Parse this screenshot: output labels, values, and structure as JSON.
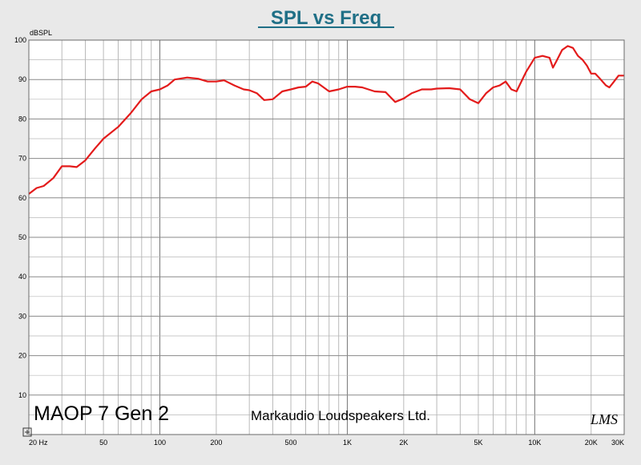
{
  "chart_data": {
    "type": "line",
    "title": "SPL vs Freq",
    "ylabel": "dBSPL",
    "xlabel": "",
    "x_scale": "log",
    "xlim": [
      20,
      30000
    ],
    "ylim": [
      0,
      100
    ],
    "grid": true,
    "y_ticks": [
      10,
      20,
      30,
      40,
      50,
      60,
      70,
      80,
      90,
      100
    ],
    "x_ticks": [
      {
        "value": 20,
        "label": "20 Hz"
      },
      {
        "value": 50,
        "label": "50"
      },
      {
        "value": 100,
        "label": "100"
      },
      {
        "value": 200,
        "label": "200"
      },
      {
        "value": 500,
        "label": "500"
      },
      {
        "value": 1000,
        "label": "1K"
      },
      {
        "value": 2000,
        "label": "2K"
      },
      {
        "value": 5000,
        "label": "5K"
      },
      {
        "value": 10000,
        "label": "10K"
      },
      {
        "value": 20000,
        "label": "20K"
      },
      {
        "value": 30000,
        "label": "30K"
      }
    ],
    "series": [
      {
        "color": "#e31b1b",
        "x": [
          20,
          22,
          24,
          27,
          30,
          33,
          36,
          40,
          45,
          50,
          60,
          70,
          80,
          90,
          100,
          110,
          120,
          140,
          160,
          180,
          200,
          220,
          250,
          280,
          300,
          330,
          360,
          400,
          450,
          500,
          550,
          600,
          650,
          700,
          800,
          900,
          1000,
          1100,
          1200,
          1400,
          1600,
          1800,
          2000,
          2200,
          2500,
          2800,
          3000,
          3500,
          4000,
          4500,
          5000,
          5500,
          6000,
          6500,
          7000,
          7500,
          8000,
          9000,
          10000,
          11000,
          12000,
          12500,
          13000,
          14000,
          15000,
          16000,
          17000,
          18000,
          19000,
          20000,
          21000,
          22000,
          24000,
          25000,
          26000,
          28000,
          30000
        ],
        "y": [
          61,
          62.5,
          63,
          65,
          68,
          68,
          67.8,
          69.5,
          72.5,
          75,
          78,
          81.5,
          85,
          87,
          87.5,
          88.5,
          90,
          90.5,
          90.2,
          89.5,
          89.5,
          89.8,
          88.5,
          87.5,
          87.3,
          86.5,
          84.8,
          85,
          87,
          87.5,
          88,
          88.2,
          89.5,
          89,
          87,
          87.5,
          88.2,
          88.2,
          88,
          87,
          86.8,
          84.3,
          85.2,
          86.5,
          87.5,
          87.5,
          87.7,
          87.8,
          87.5,
          85,
          84,
          86.5,
          88,
          88.5,
          89.5,
          87.5,
          87,
          92,
          95.5,
          96,
          95.5,
          93,
          94.5,
          97.5,
          98.5,
          98,
          96,
          95,
          93.5,
          91.5,
          91.5,
          90.5,
          88.5,
          88,
          89,
          91,
          91
        ]
      }
    ]
  },
  "annotations": {
    "model": "MAOP 7 Gen 2",
    "manufacturer": "Markaudio Loudspeakers Ltd.",
    "logo": "LMS"
  }
}
